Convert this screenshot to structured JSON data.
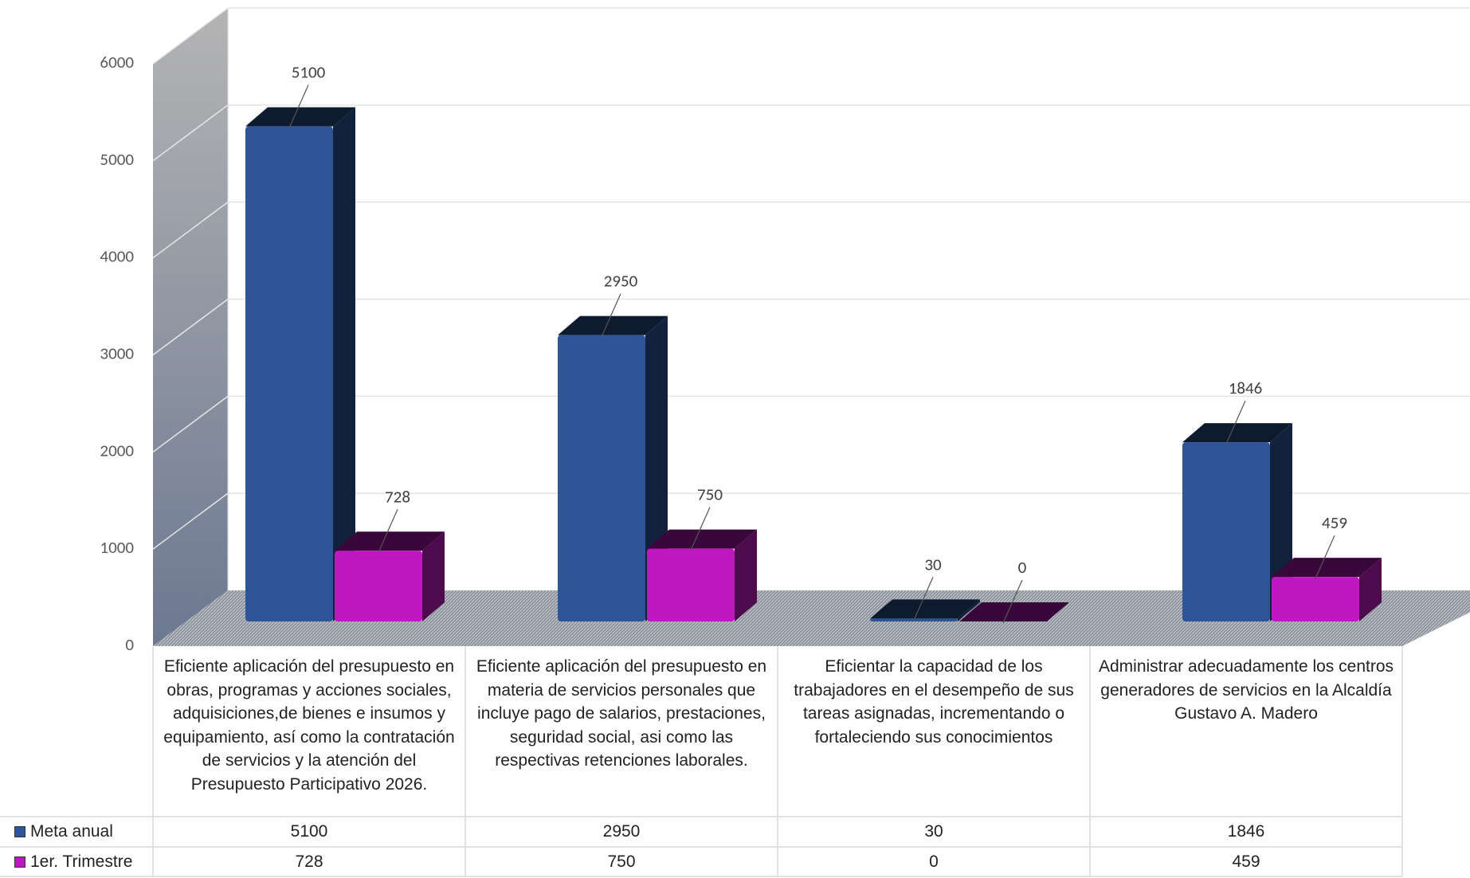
{
  "chart_data": {
    "type": "bar3d",
    "categories": [
      "Eficiente aplicación del presupuesto en obras, programas y acciones sociales, adquisiciones,de bienes e insumos y equipamiento, así como la contratación de servicios y la atención del Presupuesto Participativo 2026.",
      "Eficiente aplicación del presupuesto en materia de servicios personales que incluye pago de salarios, prestaciones, seguridad social, asi como las respectivas retenciones laborales.",
      "Eficientar la capacidad de los trabajadores en el desempeño de sus tareas asignadas, incrementando o fortaleciendo sus conocimientos",
      "Administrar adecuadamente los centros generadores de servicios en la Alcaldía Gustavo A. Madero"
    ],
    "series": [
      {
        "name": "Meta anual",
        "color": "#2e5597",
        "values": [
          5100,
          2950,
          30,
          1846
        ]
      },
      {
        "name": "1er. Trimestre",
        "color": "#c018c0",
        "values": [
          728,
          750,
          0,
          459
        ]
      }
    ],
    "ylim": [
      0,
      6000
    ],
    "yticks": [
      0,
      1000,
      2000,
      3000,
      4000,
      5000,
      6000
    ],
    "grid": true,
    "data_table": true
  }
}
